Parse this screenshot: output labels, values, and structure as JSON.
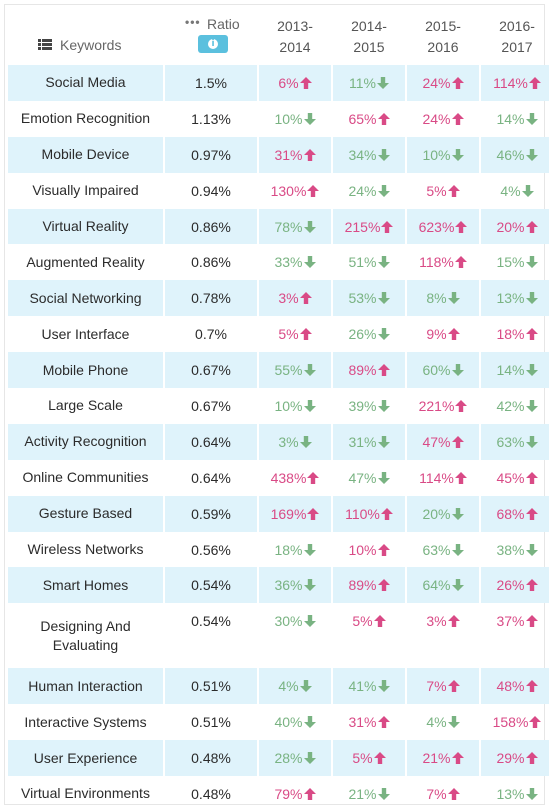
{
  "chart_data": {
    "type": "table",
    "header": {
      "keywords_label": "Keywords",
      "ratio_label": "Ratio",
      "years": [
        "2013-\n2014",
        "2014-\n2015",
        "2015-\n2016",
        "2016-\n2017"
      ],
      "year_lines": [
        [
          "2013-",
          "2014"
        ],
        [
          "2014-",
          "2015"
        ],
        [
          "2015-",
          "2016"
        ],
        [
          "2016-",
          "2017"
        ]
      ]
    },
    "colors": {
      "up": "#d94a86",
      "down": "#79b382",
      "row_highlight": "#dff3fb",
      "info_badge": "#5bc0de"
    },
    "rows": [
      {
        "keyword": "Social Media",
        "ratio": "1.5%",
        "changes": [
          {
            "v": "6%",
            "dir": "up"
          },
          {
            "v": "11%",
            "dir": "down"
          },
          {
            "v": "24%",
            "dir": "up"
          },
          {
            "v": "114%",
            "dir": "up"
          }
        ]
      },
      {
        "keyword": "Emotion Recognition",
        "ratio": "1.13%",
        "changes": [
          {
            "v": "10%",
            "dir": "down"
          },
          {
            "v": "65%",
            "dir": "up"
          },
          {
            "v": "24%",
            "dir": "up"
          },
          {
            "v": "14%",
            "dir": "down"
          }
        ]
      },
      {
        "keyword": "Mobile Device",
        "ratio": "0.97%",
        "changes": [
          {
            "v": "31%",
            "dir": "up"
          },
          {
            "v": "34%",
            "dir": "down"
          },
          {
            "v": "10%",
            "dir": "down"
          },
          {
            "v": "46%",
            "dir": "down"
          }
        ]
      },
      {
        "keyword": "Visually Impaired",
        "ratio": "0.94%",
        "changes": [
          {
            "v": "130%",
            "dir": "up"
          },
          {
            "v": "24%",
            "dir": "down"
          },
          {
            "v": "5%",
            "dir": "up"
          },
          {
            "v": "4%",
            "dir": "down"
          }
        ]
      },
      {
        "keyword": "Virtual Reality",
        "ratio": "0.86%",
        "changes": [
          {
            "v": "78%",
            "dir": "down"
          },
          {
            "v": "215%",
            "dir": "up"
          },
          {
            "v": "623%",
            "dir": "up"
          },
          {
            "v": "20%",
            "dir": "up"
          }
        ]
      },
      {
        "keyword": "Augmented Reality",
        "ratio": "0.86%",
        "changes": [
          {
            "v": "33%",
            "dir": "down"
          },
          {
            "v": "51%",
            "dir": "down"
          },
          {
            "v": "118%",
            "dir": "up"
          },
          {
            "v": "15%",
            "dir": "down"
          }
        ]
      },
      {
        "keyword": "Social Networking",
        "ratio": "0.78%",
        "changes": [
          {
            "v": "3%",
            "dir": "up"
          },
          {
            "v": "53%",
            "dir": "down"
          },
          {
            "v": "8%",
            "dir": "down"
          },
          {
            "v": "13%",
            "dir": "down"
          }
        ]
      },
      {
        "keyword": "User Interface",
        "ratio": "0.7%",
        "changes": [
          {
            "v": "5%",
            "dir": "up"
          },
          {
            "v": "26%",
            "dir": "down"
          },
          {
            "v": "9%",
            "dir": "up"
          },
          {
            "v": "18%",
            "dir": "up"
          }
        ]
      },
      {
        "keyword": "Mobile Phone",
        "ratio": "0.67%",
        "changes": [
          {
            "v": "55%",
            "dir": "down"
          },
          {
            "v": "89%",
            "dir": "up"
          },
          {
            "v": "60%",
            "dir": "down"
          },
          {
            "v": "14%",
            "dir": "down"
          }
        ]
      },
      {
        "keyword": "Large Scale",
        "ratio": "0.67%",
        "changes": [
          {
            "v": "10%",
            "dir": "down"
          },
          {
            "v": "39%",
            "dir": "down"
          },
          {
            "v": "221%",
            "dir": "up"
          },
          {
            "v": "42%",
            "dir": "down"
          }
        ]
      },
      {
        "keyword": "Activity Recognition",
        "ratio": "0.64%",
        "changes": [
          {
            "v": "3%",
            "dir": "down"
          },
          {
            "v": "31%",
            "dir": "down"
          },
          {
            "v": "47%",
            "dir": "up"
          },
          {
            "v": "63%",
            "dir": "down"
          }
        ]
      },
      {
        "keyword": "Online Communities",
        "ratio": "0.64%",
        "changes": [
          {
            "v": "438%",
            "dir": "up"
          },
          {
            "v": "47%",
            "dir": "down"
          },
          {
            "v": "114%",
            "dir": "up"
          },
          {
            "v": "45%",
            "dir": "up"
          }
        ]
      },
      {
        "keyword": "Gesture Based",
        "ratio": "0.59%",
        "changes": [
          {
            "v": "169%",
            "dir": "up"
          },
          {
            "v": "110%",
            "dir": "up"
          },
          {
            "v": "20%",
            "dir": "down"
          },
          {
            "v": "68%",
            "dir": "up"
          }
        ]
      },
      {
        "keyword": "Wireless Networks",
        "ratio": "0.56%",
        "changes": [
          {
            "v": "18%",
            "dir": "down"
          },
          {
            "v": "10%",
            "dir": "up"
          },
          {
            "v": "63%",
            "dir": "down"
          },
          {
            "v": "38%",
            "dir": "down"
          }
        ]
      },
      {
        "keyword": "Smart Homes",
        "ratio": "0.54%",
        "changes": [
          {
            "v": "36%",
            "dir": "down"
          },
          {
            "v": "89%",
            "dir": "up"
          },
          {
            "v": "64%",
            "dir": "down"
          },
          {
            "v": "26%",
            "dir": "up"
          }
        ]
      },
      {
        "keyword": "Designing And Evaluating",
        "keyword_lines": [
          "Designing And",
          "Evaluating"
        ],
        "ratio": "0.54%",
        "changes": [
          {
            "v": "30%",
            "dir": "down"
          },
          {
            "v": "5%",
            "dir": "up"
          },
          {
            "v": "3%",
            "dir": "up"
          },
          {
            "v": "37%",
            "dir": "up"
          }
        ]
      },
      {
        "keyword": "Human Interaction",
        "ratio": "0.51%",
        "changes": [
          {
            "v": "4%",
            "dir": "down"
          },
          {
            "v": "41%",
            "dir": "down"
          },
          {
            "v": "7%",
            "dir": "up"
          },
          {
            "v": "48%",
            "dir": "up"
          }
        ]
      },
      {
        "keyword": "Interactive Systems",
        "ratio": "0.51%",
        "changes": [
          {
            "v": "40%",
            "dir": "down"
          },
          {
            "v": "31%",
            "dir": "up"
          },
          {
            "v": "4%",
            "dir": "down"
          },
          {
            "v": "158%",
            "dir": "up"
          }
        ]
      },
      {
        "keyword": "User Experience",
        "ratio": "0.48%",
        "changes": [
          {
            "v": "28%",
            "dir": "down"
          },
          {
            "v": "5%",
            "dir": "up"
          },
          {
            "v": "21%",
            "dir": "up"
          },
          {
            "v": "29%",
            "dir": "up"
          }
        ]
      },
      {
        "keyword": "Virtual Environments",
        "ratio": "0.48%",
        "changes": [
          {
            "v": "79%",
            "dir": "up"
          },
          {
            "v": "21%",
            "dir": "down"
          },
          {
            "v": "7%",
            "dir": "up"
          },
          {
            "v": "13%",
            "dir": "down"
          }
        ]
      }
    ]
  },
  "icons": {
    "keywords": "list-icon",
    "ratio_menu": "ellipsis-icon",
    "info": "info-icon",
    "up": "arrow-up-icon",
    "down": "arrow-down-icon"
  }
}
